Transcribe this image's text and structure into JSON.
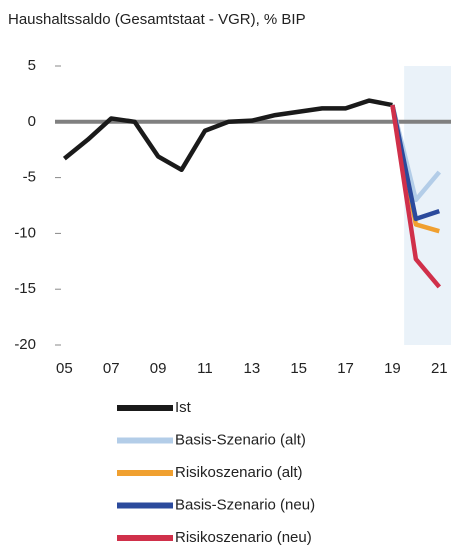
{
  "chart_data": {
    "type": "line",
    "title": "Haushaltssaldo (Gesamtstaat - VGR), % BIP",
    "x": [
      5,
      6,
      7,
      8,
      9,
      10,
      11,
      12,
      13,
      14,
      15,
      16,
      17,
      18,
      19,
      20,
      21
    ],
    "series": [
      {
        "name": "Ist",
        "color": "#1a1a1a",
        "values": [
          -3.3,
          -1.6,
          0.3,
          0.0,
          -3.1,
          -4.3,
          -0.8,
          0.0,
          0.1,
          0.6,
          0.9,
          1.2,
          1.2,
          1.9,
          1.5,
          null,
          null
        ]
      },
      {
        "name": "Basis-Szenario (alt)",
        "color": "#b3cde8",
        "values": [
          null,
          null,
          null,
          null,
          null,
          null,
          null,
          null,
          null,
          null,
          null,
          null,
          null,
          null,
          1.5,
          -7.0,
          -4.5
        ]
      },
      {
        "name": "Risikoszenario (alt)",
        "color": "#f0a030",
        "values": [
          null,
          null,
          null,
          null,
          null,
          null,
          null,
          null,
          null,
          null,
          null,
          null,
          null,
          null,
          1.5,
          -9.2,
          -9.8
        ]
      },
      {
        "name": "Basis-Szenario (neu)",
        "color": "#2b4a9c",
        "values": [
          null,
          null,
          null,
          null,
          null,
          null,
          null,
          null,
          null,
          null,
          null,
          null,
          null,
          null,
          1.5,
          -8.7,
          -8.0
        ]
      },
      {
        "name": "Risikoszenario (neu)",
        "color": "#d0304a",
        "values": [
          null,
          null,
          null,
          null,
          null,
          null,
          null,
          null,
          null,
          null,
          null,
          null,
          null,
          null,
          1.5,
          -12.3,
          -14.8
        ]
      }
    ],
    "xlim": [
      4.6,
      21.5
    ],
    "xticks": [
      {
        "value": 5,
        "label": "05"
      },
      {
        "value": 7,
        "label": "07"
      },
      {
        "value": 9,
        "label": "09"
      },
      11,
      13,
      15,
      17,
      19,
      21
    ],
    "ylim": [
      -20,
      5
    ],
    "yticks": [
      -20,
      -15,
      -10,
      -5,
      0,
      5
    ],
    "shaded_xrange": [
      19.5,
      21.5
    ],
    "zero_line": true,
    "legend": "bottom"
  }
}
